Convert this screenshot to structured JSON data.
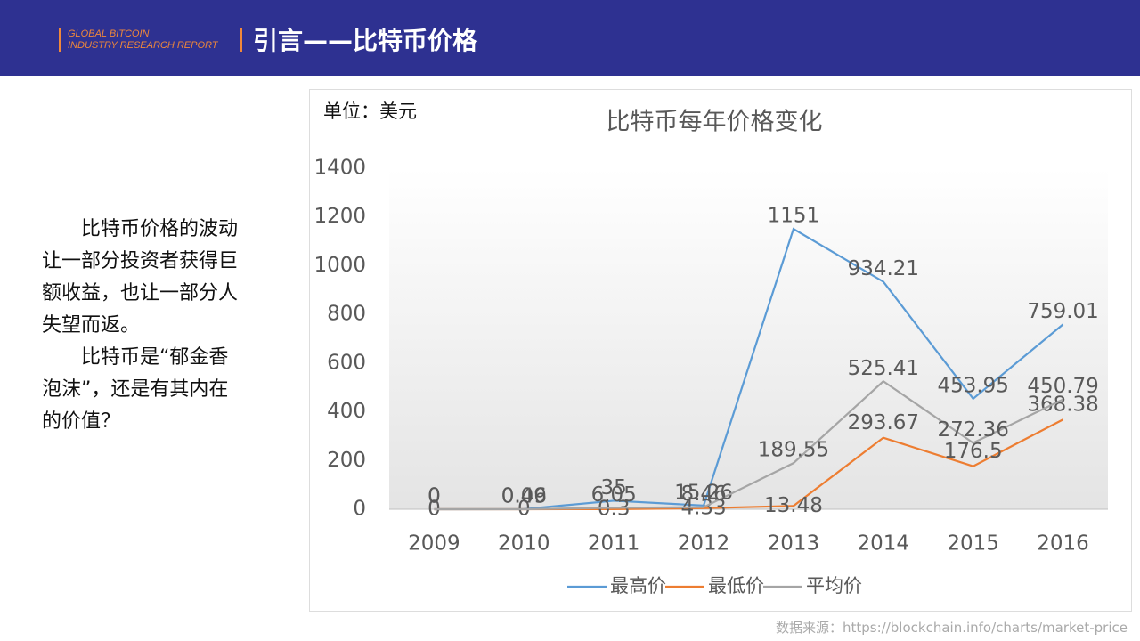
{
  "header": {
    "brand_line1": "GLOBAL BITCOIN",
    "brand_line2": "INDUSTRY RESEARCH REPORT",
    "title": "引言——比特币价格"
  },
  "body": {
    "paragraphs": [
      "比特币价格的波动让一部分投资者获得巨额收益，也让一部分人失望而返。",
      "比特币是“郁金香泡沫”，还是有其内在的价值？"
    ]
  },
  "chart_data": {
    "type": "line",
    "title": "比特币每年价格变化",
    "unit_label": "单位：美元",
    "categories": [
      "2009",
      "2010",
      "2011",
      "2012",
      "2013",
      "2014",
      "2015",
      "2016"
    ],
    "series": [
      {
        "name": "最高价",
        "color": "#5b9bd5",
        "values": [
          0,
          0.49,
          35,
          15.26,
          1151,
          934.21,
          453.95,
          759.01
        ]
      },
      {
        "name": "最低价",
        "color": "#ed7d31",
        "values": [
          0,
          0,
          0.3,
          4.33,
          13.48,
          293.67,
          176.5,
          368.38
        ]
      },
      {
        "name": "平均价",
        "color": "#a5a5a5",
        "values": [
          0,
          0.06,
          6.05,
          8.46,
          189.55,
          525.41,
          272.36,
          450.79
        ]
      }
    ],
    "ylim": [
      0,
      1400
    ],
    "yticks": [
      0,
      200,
      400,
      600,
      800,
      1000,
      1200,
      1400
    ],
    "grid": false,
    "legend": "bottom"
  },
  "source": "数据来源：https://blockchain.info/charts/market-price"
}
